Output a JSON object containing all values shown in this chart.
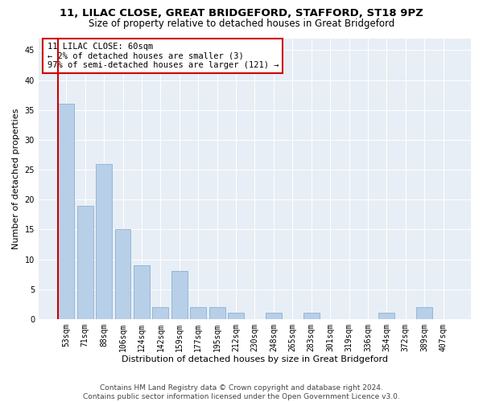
{
  "title1": "11, LILAC CLOSE, GREAT BRIDGEFORD, STAFFORD, ST18 9PZ",
  "title2": "Size of property relative to detached houses in Great Bridgeford",
  "xlabel": "Distribution of detached houses by size in Great Bridgeford",
  "ylabel": "Number of detached properties",
  "categories": [
    "53sqm",
    "71sqm",
    "88sqm",
    "106sqm",
    "124sqm",
    "142sqm",
    "159sqm",
    "177sqm",
    "195sqm",
    "212sqm",
    "230sqm",
    "248sqm",
    "265sqm",
    "283sqm",
    "301sqm",
    "319sqm",
    "336sqm",
    "354sqm",
    "372sqm",
    "389sqm",
    "407sqm"
  ],
  "values": [
    36,
    19,
    26,
    15,
    9,
    2,
    8,
    2,
    2,
    1,
    0,
    1,
    0,
    1,
    0,
    0,
    0,
    1,
    0,
    2,
    0
  ],
  "bar_color": "#b8cfe8",
  "bar_edge_color": "#7aaad0",
  "highlight_color": "#cc0000",
  "annotation_text": "11 LILAC CLOSE: 60sqm\n← 2% of detached houses are smaller (3)\n97% of semi-detached houses are larger (121) →",
  "annotation_box_color": "#ffffff",
  "annotation_box_edge": "#cc0000",
  "ylim": [
    0,
    47
  ],
  "yticks": [
    0,
    5,
    10,
    15,
    20,
    25,
    30,
    35,
    40,
    45
  ],
  "bg_color": "#e8eef5",
  "footer1": "Contains HM Land Registry data © Crown copyright and database right 2024.",
  "footer2": "Contains public sector information licensed under the Open Government Licence v3.0.",
  "title1_fontsize": 9.5,
  "title2_fontsize": 8.5,
  "xlabel_fontsize": 8,
  "ylabel_fontsize": 8,
  "tick_fontsize": 7,
  "annotation_fontsize": 7.5,
  "footer_fontsize": 6.5
}
